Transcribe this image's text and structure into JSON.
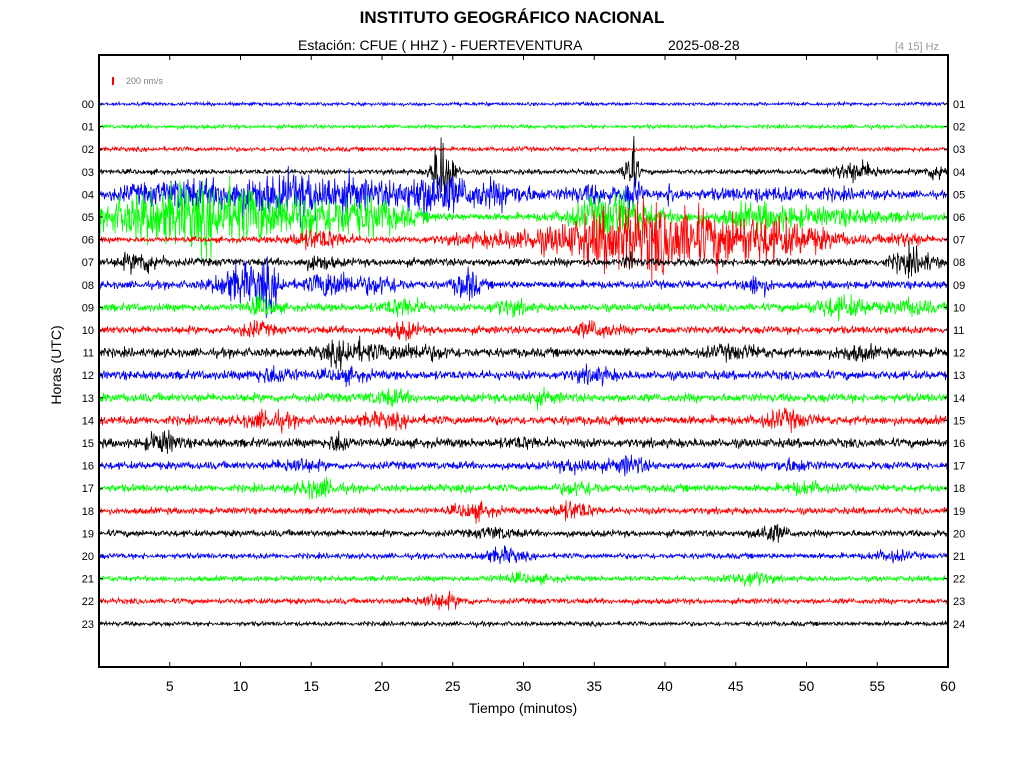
{
  "header": {
    "title": "INSTITUTO GEOGRÁFICO NACIONAL",
    "station_label": "Estación:",
    "station": "CFUE ( HHZ ) - FUERTEVENTURA",
    "date": "2025-08-28",
    "filter": "[4 15] Hz",
    "scale_label": "200 nm/s",
    "scale_color": "#ff0000"
  },
  "chart_data": {
    "type": "line",
    "title": "INSTITUTO GEOGRÁFICO NACIONAL",
    "xlabel": "Tiempo (minutos)",
    "ylabel": "Horas (UTC)",
    "xlim": [
      0,
      60
    ],
    "x_ticks": [
      5,
      10,
      15,
      20,
      25,
      30,
      35,
      40,
      45,
      50,
      55,
      60
    ],
    "left_labels": [
      "00",
      "01",
      "02",
      "03",
      "04",
      "05",
      "06",
      "07",
      "08",
      "09",
      "10",
      "11",
      "12",
      "13",
      "14",
      "15",
      "16",
      "17",
      "18",
      "19",
      "20",
      "21",
      "22",
      "23"
    ],
    "right_labels": [
      "01",
      "02",
      "03",
      "04",
      "05",
      "06",
      "07",
      "08",
      "09",
      "10",
      "11",
      "12",
      "13",
      "14",
      "15",
      "16",
      "17",
      "18",
      "19",
      "20",
      "21",
      "22",
      "23",
      "24"
    ],
    "color_cycle": [
      "#0000ff",
      "#00ff00",
      "#ff0000",
      "#000000"
    ],
    "grid": false,
    "traces": [
      {
        "hour": "00",
        "base_amp": 0.15,
        "bursts": []
      },
      {
        "hour": "01",
        "base_amp": 0.18,
        "bursts": []
      },
      {
        "hour": "02",
        "base_amp": 0.2,
        "bursts": []
      },
      {
        "hour": "03",
        "base_amp": 0.22,
        "bursts": [
          [
            24.3,
            0.5,
            3.5
          ],
          [
            37.6,
            0.3,
            3.0
          ],
          [
            53.5,
            1.2,
            0.8
          ],
          [
            59.5,
            0.8,
            0.7
          ]
        ]
      },
      {
        "hour": "04",
        "base_amp": 0.3,
        "bursts": [
          [
            3.5,
            2.0,
            0.7
          ],
          [
            6.0,
            1.0,
            0.9
          ],
          [
            10.0,
            2.0,
            1.3
          ],
          [
            14.0,
            2.0,
            1.2
          ],
          [
            17.5,
            2.5,
            1.3
          ],
          [
            23.5,
            1.6,
            1.8
          ],
          [
            28.0,
            2.0,
            1.0
          ],
          [
            35.0,
            1.5,
            0.7
          ],
          [
            40.5,
            0.3,
            0.8
          ],
          [
            37.8,
            0.4,
            1.4
          ],
          [
            48.0,
            5.0,
            0.4
          ]
        ]
      },
      {
        "hour": "05",
        "base_amp": 0.35,
        "bursts": [
          [
            4.0,
            3.0,
            1.9
          ],
          [
            9.0,
            3.0,
            1.4
          ],
          [
            14.0,
            4.0,
            1.4
          ],
          [
            19.0,
            2.0,
            1.0
          ],
          [
            36.5,
            2.0,
            1.9
          ],
          [
            46.5,
            2.0,
            0.9
          ],
          [
            52.0,
            3.0,
            0.5
          ]
        ]
      },
      {
        "hour": "06",
        "base_amp": 0.25,
        "bursts": [
          [
            15.5,
            1.5,
            0.8
          ],
          [
            31.0,
            4.0,
            0.8
          ],
          [
            37.0,
            2.5,
            2.3
          ],
          [
            41.0,
            2.5,
            1.5
          ],
          [
            46.5,
            3.5,
            1.9
          ],
          [
            57.0,
            1.0,
            0.5
          ]
        ]
      },
      {
        "hour": "07",
        "base_amp": 0.35,
        "bursts": [
          [
            3.0,
            1.0,
            0.8
          ],
          [
            15.5,
            0.8,
            0.5
          ],
          [
            57.5,
            1.0,
            1.0
          ],
          [
            37.5,
            0.3,
            0.6
          ]
        ]
      },
      {
        "hour": "08",
        "base_amp": 0.35,
        "bursts": [
          [
            10.0,
            1.2,
            1.6
          ],
          [
            12.0,
            0.6,
            1.5
          ],
          [
            16.5,
            1.2,
            1.1
          ],
          [
            20.0,
            1.0,
            0.7
          ],
          [
            26.0,
            0.6,
            1.3
          ],
          [
            46.5,
            0.6,
            0.8
          ]
        ]
      },
      {
        "hour": "09",
        "base_amp": 0.35,
        "bursts": [
          [
            11.5,
            0.8,
            0.7
          ],
          [
            21.5,
            1.0,
            0.7
          ],
          [
            29.0,
            1.0,
            0.5
          ],
          [
            52.5,
            1.5,
            0.8
          ],
          [
            57.5,
            1.0,
            0.6
          ]
        ]
      },
      {
        "hour": "10",
        "base_amp": 0.35,
        "bursts": [
          [
            11.0,
            0.8,
            0.5
          ],
          [
            21.5,
            0.8,
            0.6
          ],
          [
            35.0,
            1.0,
            0.6
          ]
        ]
      },
      {
        "hour": "11",
        "base_amp": 0.4,
        "bursts": [
          [
            17.5,
            1.2,
            0.9
          ],
          [
            22.0,
            2.0,
            0.5
          ],
          [
            45.0,
            1.5,
            0.4
          ],
          [
            53.5,
            1.0,
            0.5
          ]
        ]
      },
      {
        "hour": "12",
        "base_amp": 0.4,
        "bursts": [
          [
            12.5,
            1.0,
            0.6
          ],
          [
            17.5,
            1.0,
            0.4
          ],
          [
            35.0,
            1.0,
            0.5
          ]
        ]
      },
      {
        "hour": "13",
        "base_amp": 0.4,
        "bursts": [
          [
            20.5,
            1.0,
            0.5
          ],
          [
            31.0,
            1.0,
            0.4
          ]
        ]
      },
      {
        "hour": "14",
        "base_amp": 0.4,
        "bursts": [
          [
            12.0,
            1.2,
            0.6
          ],
          [
            20.0,
            1.5,
            0.4
          ],
          [
            48.5,
            1.2,
            0.6
          ]
        ]
      },
      {
        "hour": "15",
        "base_amp": 0.4,
        "bursts": [
          [
            4.5,
            0.8,
            0.8
          ],
          [
            17.0,
            0.5,
            0.8
          ],
          [
            30.0,
            1.0,
            0.3
          ]
        ]
      },
      {
        "hour": "16",
        "base_amp": 0.35,
        "bursts": [
          [
            14.0,
            1.0,
            0.5
          ],
          [
            34.0,
            1.0,
            0.5
          ],
          [
            37.5,
            0.8,
            0.7
          ],
          [
            49.0,
            1.0,
            0.4
          ]
        ]
      },
      {
        "hour": "17",
        "base_amp": 0.35,
        "bursts": [
          [
            15.5,
            1.0,
            0.7
          ],
          [
            34.0,
            1.0,
            0.5
          ],
          [
            50.0,
            1.0,
            0.4
          ]
        ]
      },
      {
        "hour": "18",
        "base_amp": 0.3,
        "bursts": [
          [
            26.5,
            1.0,
            0.6
          ],
          [
            33.5,
            1.0,
            0.7
          ]
        ]
      },
      {
        "hour": "19",
        "base_amp": 0.3,
        "bursts": [
          [
            28.0,
            1.0,
            0.4
          ],
          [
            47.5,
            0.8,
            0.7
          ]
        ]
      },
      {
        "hour": "20",
        "base_amp": 0.25,
        "bursts": [
          [
            28.5,
            1.0,
            0.6
          ],
          [
            56.0,
            1.0,
            0.4
          ]
        ]
      },
      {
        "hour": "21",
        "base_amp": 0.25,
        "bursts": [
          [
            46.0,
            1.0,
            0.6
          ],
          [
            30.0,
            1.5,
            0.3
          ]
        ]
      },
      {
        "hour": "22",
        "base_amp": 0.25,
        "bursts": [
          [
            24.0,
            1.2,
            0.6
          ]
        ]
      },
      {
        "hour": "23",
        "base_amp": 0.2,
        "bursts": []
      }
    ]
  }
}
